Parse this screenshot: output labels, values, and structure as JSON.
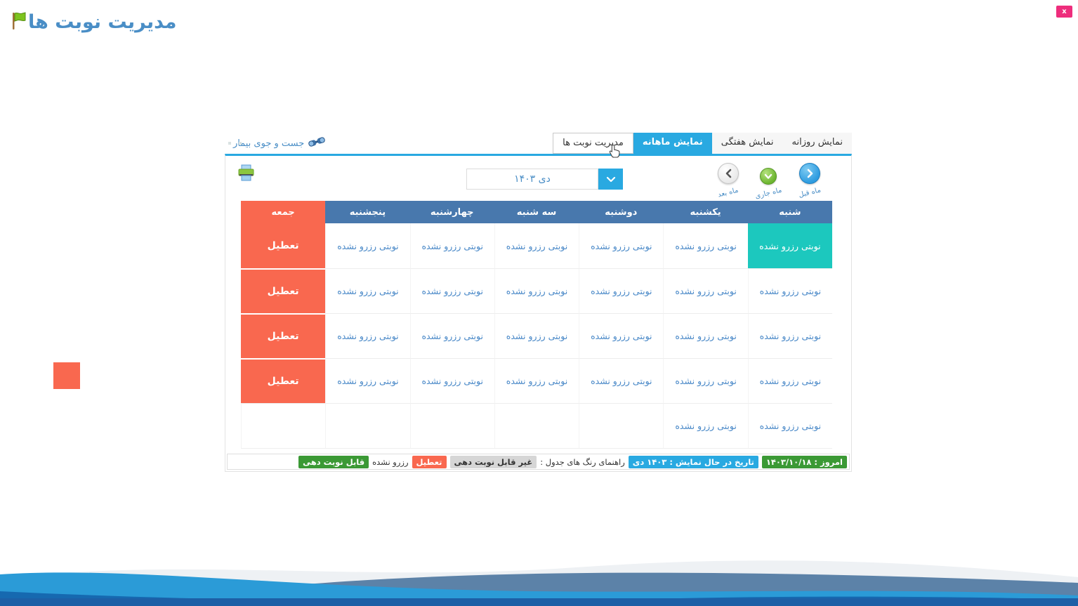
{
  "window": {
    "close_label": "x"
  },
  "page": {
    "title": "مدیریت نوبت ها"
  },
  "tabs": {
    "daily": {
      "label": "نمایش روزانه"
    },
    "weekly": {
      "label": "نمایش هفتگی"
    },
    "monthly": {
      "label": "نمایش ماهانه",
      "active": true
    },
    "manage": {
      "label": "مدیریت نوبت ها"
    }
  },
  "search": {
    "label": "جست و جوی بیمار"
  },
  "toolbar": {
    "month_value": "۱۴۰۳ دی",
    "nav": {
      "prev_label": "ماه قبل",
      "current_label": "ماه جاری",
      "next_label": "ماه بعد"
    }
  },
  "calendar": {
    "day_headers": [
      "شنبه",
      "یکشنبه",
      "دوشنبه",
      "سه شنبه",
      "چهارشنبه",
      "پنجشنبه",
      "جمعه"
    ],
    "labels": {
      "free": "نوبتی رزرو نشده",
      "closed": "تعطیل",
      "empty": ""
    },
    "rows": [
      [
        "free_selected",
        "free",
        "free",
        "free",
        "free",
        "free",
        "closed"
      ],
      [
        "free",
        "free",
        "free",
        "free",
        "free",
        "free",
        "closed"
      ],
      [
        "free",
        "free",
        "free",
        "free",
        "free",
        "free",
        "closed"
      ],
      [
        "free",
        "free",
        "free",
        "free",
        "free",
        "free",
        "closed"
      ],
      [
        "free",
        "free",
        "empty",
        "empty",
        "empty",
        "empty",
        "empty"
      ]
    ]
  },
  "legend": {
    "today": "امروز : ۱۴۰۳/۱۰/۱۸",
    "showing": "تاریخ در حال نمایش : ۱۴۰۳ دی",
    "guide_label": "راهنمای رنگ های جدول :",
    "unavailable": "غیر قابل نوبت دهی",
    "closed": "تعطیل",
    "not_reserved": "رزرو نشده",
    "available": "قابل نوبت دهی"
  },
  "colors": {
    "accent_blue": "#29a9e1",
    "header_blue": "#4878ad",
    "closed_orange": "#f9684f",
    "selected_teal": "#1cc8be",
    "cell_text_blue": "#4a89c8",
    "legend_green": "#3b9935",
    "close_pink": "#ee2d7c",
    "title_blue": "#4a8ec6"
  }
}
